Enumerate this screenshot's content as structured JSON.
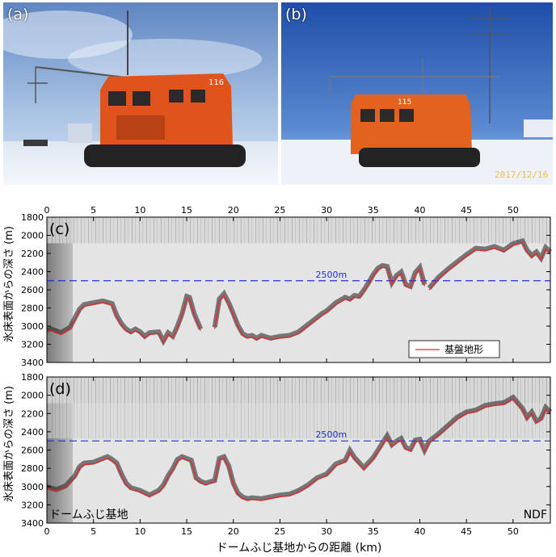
{
  "photos": [
    {
      "label": "(a)",
      "vehicle_number": "116"
    },
    {
      "label": "(b)",
      "vehicle_number": "115",
      "date_stamp": "2017/12/16"
    }
  ],
  "chart_data": [
    {
      "type": "line",
      "panel_label": "(c)",
      "xlim": [
        0,
        54
      ],
      "ylim": [
        1800,
        3400
      ],
      "y_inverted": true,
      "x_ticks": [
        0,
        5,
        10,
        15,
        20,
        25,
        30,
        35,
        40,
        45,
        50
      ],
      "y_ticks": [
        1800,
        2000,
        2200,
        2400,
        2600,
        2800,
        3000,
        3200,
        3400
      ],
      "ylabel": "氷床表面からの深さ (m)",
      "xlabel": "",
      "reference_line": {
        "y": 2500,
        "label": "2500m",
        "color": "#1f2fd6"
      },
      "legend": {
        "entries": [
          "基盤地形"
        ],
        "position": "bottom-right"
      },
      "series": [
        {
          "name": "基盤地形",
          "color": "#e8262a",
          "segments": [
            {
              "x": [
                0,
                0.5,
                1.5,
                2.5,
                3,
                3.5,
                4,
                5,
                6,
                7,
                7.5,
                8,
                8.5,
                9,
                9.5,
                10,
                10.5,
                11,
                12,
                12.5,
                13,
                13.5,
                14,
                14.5,
                15,
                15.3,
                15.8,
                16.5
              ],
              "y": [
                3060,
                3050,
                3090,
                3030,
                2930,
                2830,
                2780,
                2760,
                2740,
                2770,
                2900,
                2990,
                3050,
                3080,
                3050,
                3080,
                3130,
                3090,
                3080,
                3180,
                3090,
                3130,
                3020,
                2880,
                2690,
                2700,
                2880,
                3050
              ]
            },
            {
              "x": [
                18,
                18.5,
                19,
                19.5,
                20,
                20.5,
                21,
                21.5,
                22,
                22.5,
                23,
                24,
                25,
                26,
                27,
                28,
                29,
                29.5,
                30,
                31,
                32,
                32.5,
                33,
                33.5,
                34,
                34.5,
                35,
                35.5,
                36,
                36.5,
                37,
                37.5,
                38,
                38.5,
                39,
                39.5,
                40,
                40.5
              ],
              "y": [
                3030,
                2720,
                2660,
                2760,
                2880,
                3010,
                3100,
                3130,
                3120,
                3150,
                3120,
                3150,
                3130,
                3120,
                3080,
                3000,
                2920,
                2880,
                2850,
                2760,
                2700,
                2720,
                2680,
                2690,
                2620,
                2540,
                2450,
                2380,
                2350,
                2360,
                2540,
                2460,
                2420,
                2560,
                2580,
                2430,
                2370,
                2560
              ]
            },
            {
              "x": [
                41,
                42,
                43,
                44,
                45,
                46,
                47,
                48,
                49,
                50,
                51,
                51.5,
                52,
                52.5,
                53,
                53.5,
                54
              ],
              "y": [
                2600,
                2480,
                2390,
                2310,
                2230,
                2160,
                2170,
                2140,
                2180,
                2110,
                2080,
                2180,
                2240,
                2200,
                2270,
                2150,
                2200
              ]
            }
          ]
        }
      ]
    },
    {
      "type": "line",
      "panel_label": "(d)",
      "xlim": [
        0,
        54
      ],
      "ylim": [
        1800,
        3400
      ],
      "y_inverted": true,
      "x_ticks": [
        0,
        5,
        10,
        15,
        20,
        25,
        30,
        35,
        40,
        45,
        50
      ],
      "y_ticks": [
        1800,
        2000,
        2200,
        2400,
        2600,
        2800,
        3000,
        3200,
        3400
      ],
      "ylabel": "氷床表面からの深さ (m)",
      "xlabel": "ドームふじ基地からの距離 (km)",
      "reference_line": {
        "y": 2500,
        "label": "2500m",
        "color": "#1f2fd6"
      },
      "annotations": [
        {
          "text": "ドームふじ基地",
          "position": "bottom-left"
        },
        {
          "text": "NDF",
          "position": "bottom-right"
        }
      ],
      "series": [
        {
          "name": "",
          "color": "#e8262a",
          "segments": [
            {
              "x": [
                0,
                1,
                2,
                3,
                3.5,
                4,
                5,
                6,
                6.5,
                7,
                7.5,
                8,
                8.5,
                9,
                10,
                11,
                12,
                12.5,
                13,
                13.5,
                14,
                14.5,
                15,
                15.5,
                16,
                16.5,
                17,
                18,
                18.5,
                19,
                19.5,
                20,
                20.5,
                21,
                21.5,
                22,
                23,
                24,
                25,
                26,
                27,
                28,
                29,
                30,
                31,
                32,
                32.5,
                33,
                34,
                35,
                36,
                36.5,
                37,
                37.5,
                38,
                38.5,
                39,
                39.5,
                40,
                40.5,
                41,
                42,
                43,
                44,
                45,
                46,
                47,
                48,
                49,
                50,
                51,
                51.5,
                52,
                52.5,
                53,
                53.5,
                54
              ],
              "y": [
                3020,
                3050,
                3010,
                2900,
                2800,
                2760,
                2750,
                2710,
                2690,
                2720,
                2760,
                2880,
                2980,
                3030,
                3060,
                3110,
                3060,
                3000,
                2900,
                2820,
                2720,
                2690,
                2710,
                2730,
                2920,
                2960,
                2980,
                2950,
                2710,
                2690,
                2790,
                2980,
                3090,
                3130,
                3150,
                3140,
                3150,
                3130,
                3110,
                3100,
                3060,
                3000,
                2920,
                2880,
                2770,
                2730,
                2620,
                2700,
                2810,
                2700,
                2540,
                2460,
                2560,
                2520,
                2490,
                2590,
                2610,
                2510,
                2500,
                2620,
                2520,
                2440,
                2350,
                2260,
                2200,
                2180,
                2130,
                2110,
                2100,
                2040,
                2160,
                2260,
                2200,
                2300,
                2270,
                2150,
                2200
              ]
            }
          ]
        }
      ]
    }
  ]
}
